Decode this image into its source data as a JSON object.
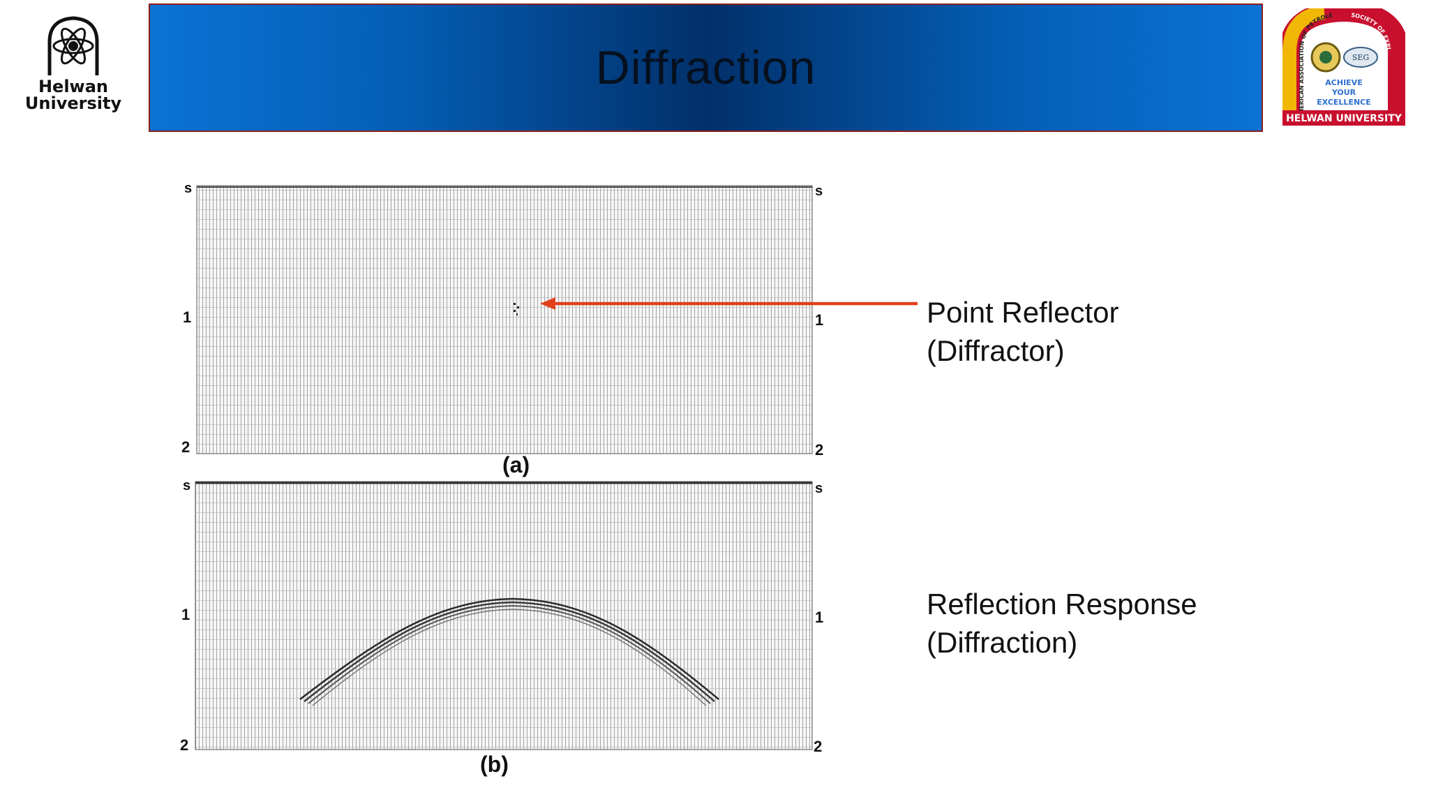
{
  "header": {
    "title": "Diffraction",
    "left_logo": {
      "line1": "Helwan",
      "line2": "University"
    },
    "right_logo": {
      "ring_left": "AMERICAN ASSOCIATION OF PETROLEUM GEOLOGISTS",
      "ring_top": "SOCIETY OF EXPLORATION GEOPHYSICISTS",
      "center_badge": "SEG",
      "motto": [
        "ACHIEVE",
        "YOUR",
        "EXCELLENCE"
      ],
      "banner": "HELWAN UNIVERSITY"
    },
    "colors": {
      "title_bar": "#045fb6",
      "title_border": "#8a1d1d",
      "banner": "#c8102e"
    }
  },
  "figure": {
    "panels": [
      {
        "caption": "(a)",
        "left_ticks": [
          "s",
          "1",
          "2"
        ],
        "right_ticks": [
          "s",
          "1",
          "2"
        ]
      },
      {
        "caption": "(b)",
        "left_ticks": [
          "s",
          "1",
          "2"
        ],
        "right_ticks": [
          "s",
          "1",
          "2"
        ]
      }
    ]
  },
  "annotations": {
    "point_reflector": {
      "line1": "Point Reflector",
      "line2": "(Diffractor)"
    },
    "reflection_response": {
      "line1": "Reflection Response",
      "line2": "(Diffraction)"
    },
    "arrow_color": "#e0401a"
  }
}
